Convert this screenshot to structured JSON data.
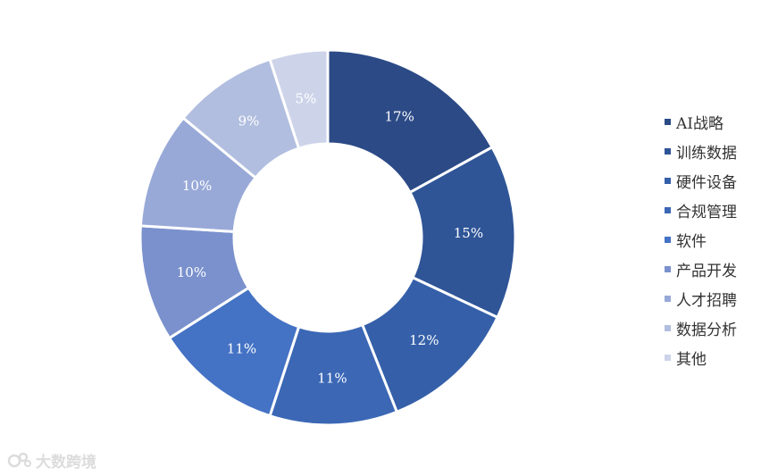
{
  "chart_data": {
    "type": "pie",
    "donut": true,
    "categories": [
      "AI战略",
      "训练数据",
      "硬件设备",
      "合规管理",
      "软件",
      "产品开发",
      "人才招聘",
      "数据分析",
      "其他"
    ],
    "values": [
      17,
      15,
      12,
      11,
      11,
      10,
      10,
      9,
      5
    ],
    "labels": [
      "17%",
      "15%",
      "12%",
      "11%",
      "11%",
      "10%",
      "10%",
      "9%",
      "5%"
    ],
    "colors": [
      "#2b4a86",
      "#2f5597",
      "#3560a9",
      "#3b67b5",
      "#4472c4",
      "#7a91cd",
      "#98a9d8",
      "#b1bedf",
      "#cdd4ea"
    ],
    "legend_position": "right"
  },
  "watermark": {
    "text": "大数跨境"
  }
}
